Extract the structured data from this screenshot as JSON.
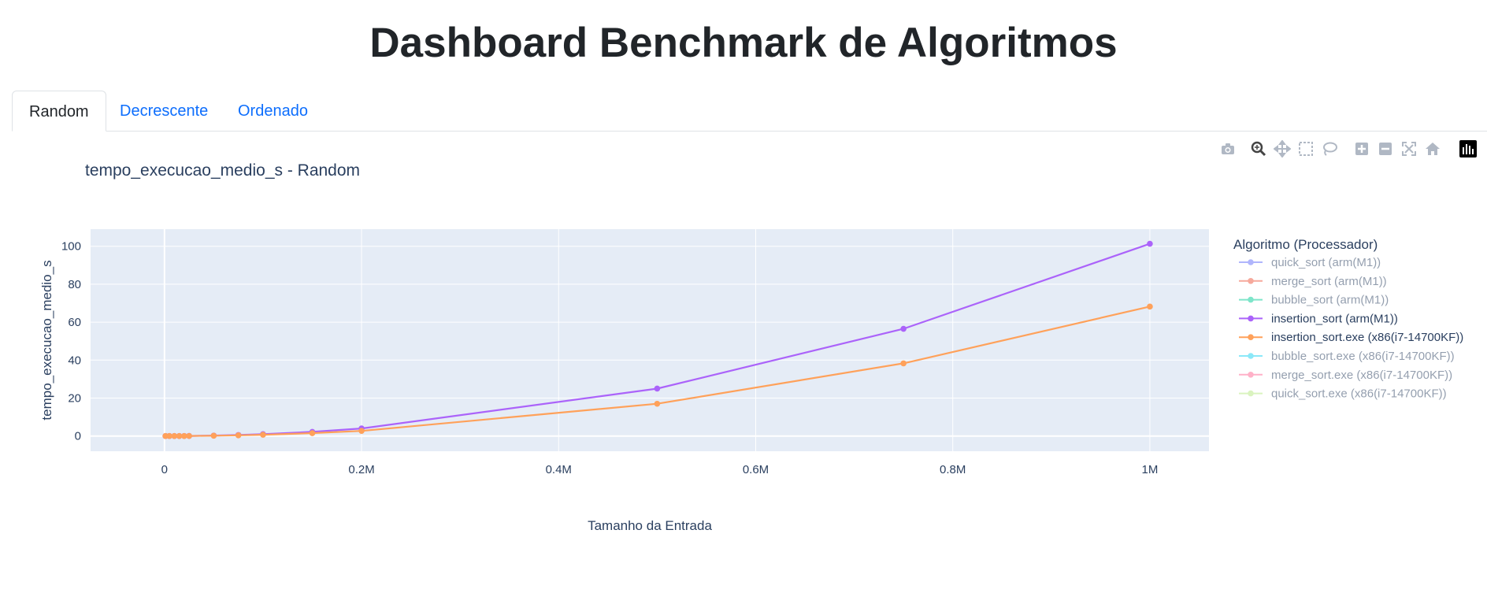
{
  "page": {
    "title": "Dashboard Benchmark de Algoritmos"
  },
  "tabs": [
    {
      "label": "Random",
      "active": true
    },
    {
      "label": "Decrescente",
      "active": false
    },
    {
      "label": "Ordenado",
      "active": false
    }
  ],
  "modebar": {
    "buttons": [
      "camera-icon",
      "zoom-icon",
      "pan-icon",
      "box-select-icon",
      "lasso-icon",
      "zoom-in-icon",
      "zoom-out-icon",
      "autoscale-icon",
      "home-icon",
      "plotly-logo-icon"
    ]
  },
  "chart_data": {
    "type": "line",
    "title": "tempo_execucao_medio_s - Random",
    "xlabel": "Tamanho da Entrada",
    "ylabel": "tempo_execucao_medio_s",
    "xlim": [
      -75000,
      1060000
    ],
    "ylim": [
      -8,
      109
    ],
    "x_ticks": [
      0,
      200000,
      400000,
      600000,
      800000,
      1000000
    ],
    "x_tick_labels": [
      "0",
      "0.2M",
      "0.4M",
      "0.6M",
      "0.8M",
      "1M"
    ],
    "y_ticks": [
      0,
      20,
      40,
      60,
      80,
      100
    ],
    "y_tick_labels": [
      "0",
      "20",
      "40",
      "60",
      "80",
      "100"
    ],
    "grid": true,
    "plot_bgcolor": "#e5ecf6",
    "legend": {
      "title": "Algoritmo (Processador)",
      "position": "right"
    },
    "series": [
      {
        "name": "quick_sort (arm(M1))",
        "color": "#636efa",
        "visible": false,
        "x": [],
        "y": []
      },
      {
        "name": "merge_sort (arm(M1))",
        "color": "#ef553b",
        "visible": false,
        "x": [],
        "y": []
      },
      {
        "name": "bubble_sort (arm(M1))",
        "color": "#00cc96",
        "visible": false,
        "x": [],
        "y": []
      },
      {
        "name": "insertion_sort (arm(M1))",
        "color": "#ab63fa",
        "visible": true,
        "x": [
          1000,
          5000,
          10000,
          15000,
          20000,
          25000,
          50000,
          75000,
          100000,
          150000,
          200000,
          500000,
          750000,
          1000000
        ],
        "y": [
          0.0,
          0.0,
          0.01,
          0.02,
          0.04,
          0.06,
          0.25,
          0.56,
          1.0,
          2.2,
          4.0,
          25.0,
          56.5,
          101.3
        ]
      },
      {
        "name": "insertion_sort.exe (x86(i7-14700KF))",
        "color": "#ffa15a",
        "visible": true,
        "x": [
          1000,
          5000,
          10000,
          15000,
          20000,
          25000,
          50000,
          75000,
          100000,
          150000,
          200000,
          500000,
          750000,
          1000000
        ],
        "y": [
          0.0,
          0.0,
          0.01,
          0.02,
          0.03,
          0.04,
          0.17,
          0.38,
          0.68,
          1.53,
          2.72,
          17.0,
          38.3,
          68.2
        ]
      },
      {
        "name": "bubble_sort.exe (x86(i7-14700KF))",
        "color": "#19d3f3",
        "visible": false,
        "x": [],
        "y": []
      },
      {
        "name": "merge_sort.exe (x86(i7-14700KF))",
        "color": "#ff6692",
        "visible": false,
        "x": [],
        "y": []
      },
      {
        "name": "quick_sort.exe (x86(i7-14700KF))",
        "color": "#b6e880",
        "visible": false,
        "x": [],
        "y": []
      }
    ]
  }
}
